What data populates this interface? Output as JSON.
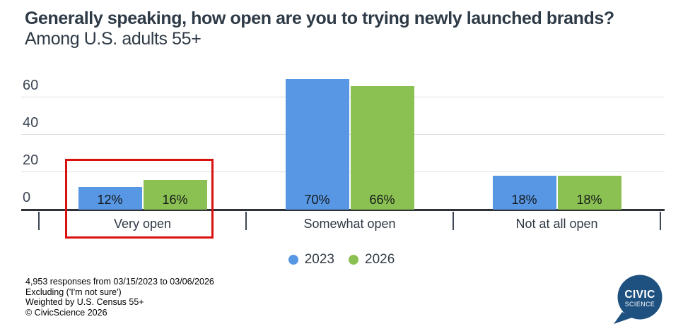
{
  "title": {
    "question": "Generally speaking, how open are you to trying newly launched brands?",
    "subtitle": "Among U.S. adults 55+"
  },
  "chart_data": {
    "type": "bar",
    "categories": [
      "Very open",
      "Somewhat open",
      "Not at all open"
    ],
    "series": [
      {
        "name": "2023",
        "color": "#5897e3",
        "values": [
          12,
          70,
          18
        ],
        "labels": [
          "12%",
          "70%",
          "18%"
        ]
      },
      {
        "name": "2026",
        "color": "#8bc152",
        "values": [
          16,
          66,
          18
        ],
        "labels": [
          "16%",
          "66%",
          "18%"
        ]
      }
    ],
    "yticks": [
      0,
      20,
      40,
      60
    ],
    "ylim": [
      0,
      74
    ],
    "grid": true,
    "legend_position": "bottom",
    "annotation": {
      "type": "highlight-box",
      "target": "Very open",
      "color": "#d8100e"
    }
  },
  "footer": {
    "lines": [
      "4,953 responses from 03/15/2023 to 03/06/2026",
      "Excluding ('I'm not sure')",
      "Weighted by U.S. Census 55+",
      "© CivicScience 2026"
    ]
  },
  "logo": {
    "line1": "CIVIC",
    "line2": "SCIENCE",
    "color": "#1e5180"
  }
}
